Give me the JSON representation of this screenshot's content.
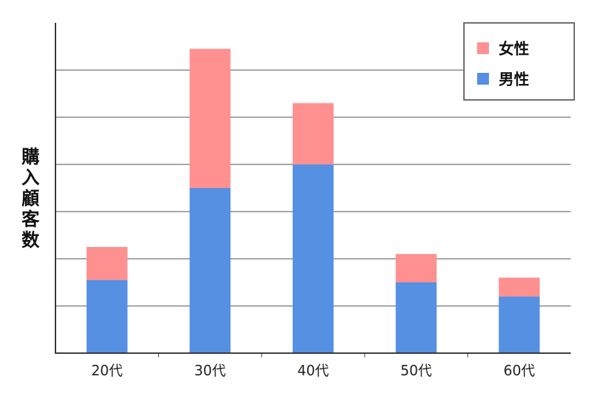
{
  "chart_data": {
    "type": "bar",
    "stacked": true,
    "categories": [
      "20代",
      "30代",
      "40代",
      "50代",
      "60代"
    ],
    "series": [
      {
        "name": "男性",
        "color": "#5590e2",
        "values": [
          3.1,
          7.0,
          8.0,
          3.0,
          2.4
        ]
      },
      {
        "name": "女性",
        "color": "#ff9090",
        "values": [
          1.4,
          5.9,
          2.6,
          1.2,
          0.8
        ]
      }
    ],
    "ylabel": "購入顧客数",
    "xlabel": "",
    "ylim": [
      0,
      14
    ],
    "grid": true,
    "legend_position": "top-right",
    "legend_order": [
      "女性",
      "男性"
    ]
  }
}
